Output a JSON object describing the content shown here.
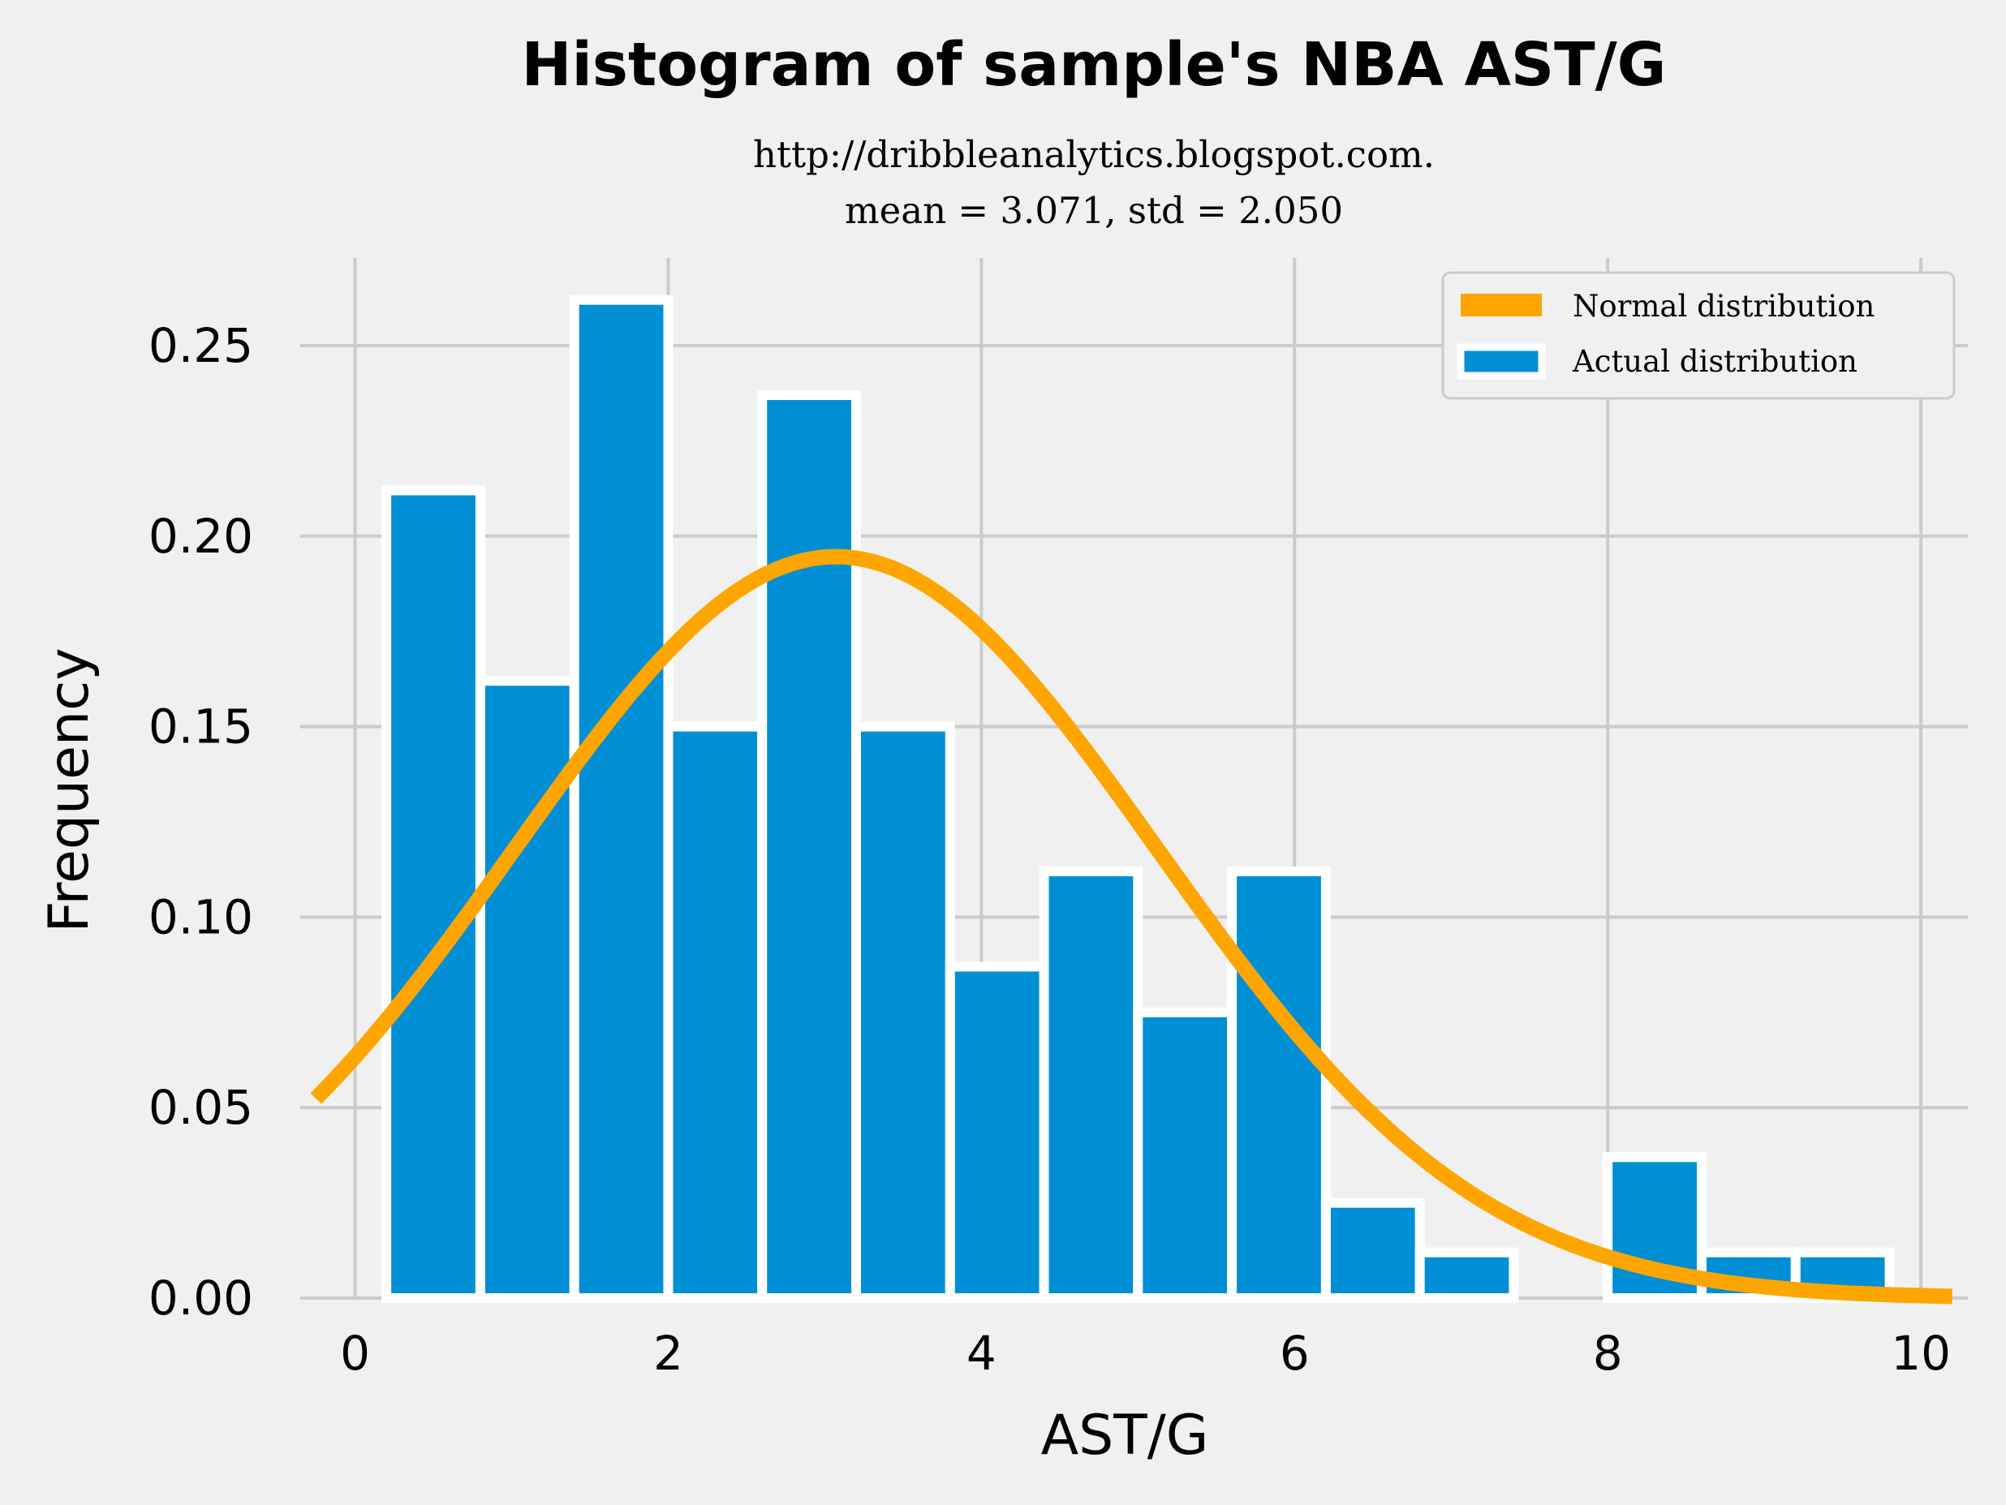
{
  "chart_data": {
    "type": "bar",
    "title": "Histogram of sample's NBA AST/G",
    "subtitle_lines": [
      "http://dribbleanalytics.blogspot.com.",
      "mean = 3.071, std = 2.050"
    ],
    "xlabel": "AST/G",
    "ylabel": "Frequency",
    "xlim": [
      -0.35,
      10.3
    ],
    "ylim": [
      0,
      0.273
    ],
    "xticks": [
      0,
      2,
      4,
      6,
      8,
      10
    ],
    "xtick_labels": [
      "0",
      "2",
      "4",
      "6",
      "8",
      "10"
    ],
    "yticks": [
      0,
      0.05,
      0.1,
      0.15,
      0.2,
      0.25
    ],
    "ytick_labels": [
      "0.00",
      "0.05",
      "0.10",
      "0.15",
      "0.20",
      "0.25"
    ],
    "grid": true,
    "legend_position": "top-right",
    "bins": [
      {
        "x0": 0.2,
        "x1": 0.8,
        "value": 0.212
      },
      {
        "x0": 0.8,
        "x1": 1.4,
        "value": 0.162
      },
      {
        "x0": 1.4,
        "x1": 2.0,
        "value": 0.262
      },
      {
        "x0": 2.0,
        "x1": 2.6,
        "value": 0.15
      },
      {
        "x0": 2.6,
        "x1": 3.2,
        "value": 0.237
      },
      {
        "x0": 3.2,
        "x1": 3.8,
        "value": 0.15
      },
      {
        "x0": 3.8,
        "x1": 4.4,
        "value": 0.087
      },
      {
        "x0": 4.4,
        "x1": 5.0,
        "value": 0.112
      },
      {
        "x0": 5.0,
        "x1": 5.6,
        "value": 0.075
      },
      {
        "x0": 5.6,
        "x1": 6.2,
        "value": 0.112
      },
      {
        "x0": 6.2,
        "x1": 6.8,
        "value": 0.025
      },
      {
        "x0": 6.8,
        "x1": 7.4,
        "value": 0.012
      },
      {
        "x0": 7.4,
        "x1": 8.0,
        "value": 0.0
      },
      {
        "x0": 8.0,
        "x1": 8.6,
        "value": 0.037
      },
      {
        "x0": 8.6,
        "x1": 9.2,
        "value": 0.012
      },
      {
        "x0": 9.2,
        "x1": 9.8,
        "value": 0.012
      }
    ],
    "normal_curve": {
      "mean": 3.071,
      "std": 2.05,
      "x_range": [
        -0.25,
        10.2
      ]
    },
    "series": [
      {
        "name": "Normal distribution",
        "color": "#ffa500",
        "kind": "line"
      },
      {
        "name": "Actual distribution",
        "color": "#008fd5",
        "kind": "bar"
      }
    ]
  }
}
